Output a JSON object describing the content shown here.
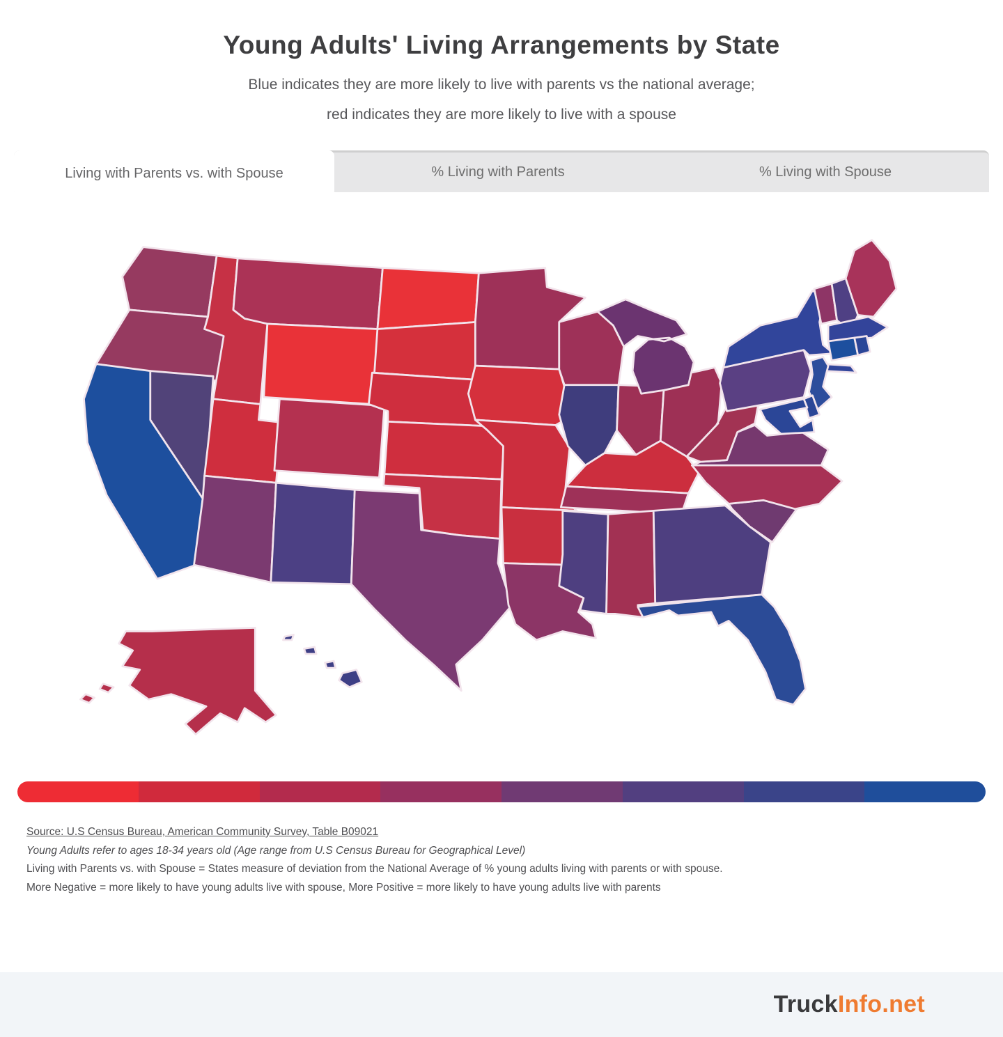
{
  "header": {
    "title": "Young Adults' Living Arrangements by State",
    "subtitle_line1": "Blue indicates they are more likely to live with parents vs the national average;",
    "subtitle_line2": "red indicates they are more likely to live with a spouse"
  },
  "tabs": [
    {
      "label": "Living with Parents vs. with Spouse",
      "active": true
    },
    {
      "label": "% Living with Parents",
      "active": false
    },
    {
      "label": "% Living with Spouse",
      "active": false
    }
  ],
  "notes": {
    "source": "Source: U.S Census Bureau, American Community Survey, Table B09021",
    "line2": "Young Adults refer to ages 18-34 years old (Age range from U.S Census Bureau for Geographical Level)",
    "line3": "Living with Parents vs. with Spouse = States measure of deviation from the National Average of % young adults living with parents or with spouse.",
    "line4": "More Negative = more likely to have young adults live with spouse, More Positive = more likely to have young adults live with parents"
  },
  "footer": {
    "brand_primary": "Truck",
    "brand_accent": "Info.net",
    "accent_color": "#ef7b31"
  },
  "chart_data": {
    "type": "choropleth",
    "title": "Young Adults' Living Arrangements by State",
    "scale": {
      "kind": "diverging",
      "red_end_meaning": "more likely to live with spouse (more negative deviation)",
      "blue_end_meaning": "more likely to live with parents (more positive deviation)",
      "legend_colors": [
        "#ee2c34",
        "#d02a3c",
        "#b32b4d",
        "#97305f",
        "#703a73",
        "#523f80",
        "#3a4489",
        "#1f4e9b"
      ],
      "bucket_note": "bucket 0 = reddest, bucket 7 = bluest, read from state fill colors"
    },
    "states": [
      {
        "abbr": "WA",
        "name": "Washington",
        "color": "#963a60",
        "bucket": 3
      },
      {
        "abbr": "OR",
        "name": "Oregon",
        "color": "#963a60",
        "bucket": 3
      },
      {
        "abbr": "CA",
        "name": "California",
        "color": "#1d4f9e",
        "bucket": 7
      },
      {
        "abbr": "NV",
        "name": "Nevada",
        "color": "#514379",
        "bucket": 5
      },
      {
        "abbr": "ID",
        "name": "Idaho",
        "color": "#c63145",
        "bucket": 2
      },
      {
        "abbr": "MT",
        "name": "Montana",
        "color": "#ab3356",
        "bucket": 2
      },
      {
        "abbr": "WY",
        "name": "Wyoming",
        "color": "#e93238",
        "bucket": 0
      },
      {
        "abbr": "UT",
        "name": "Utah",
        "color": "#cf2e3e",
        "bucket": 1
      },
      {
        "abbr": "CO",
        "name": "Colorado",
        "color": "#b43150",
        "bucket": 2
      },
      {
        "abbr": "AZ",
        "name": "Arizona",
        "color": "#7b3a70",
        "bucket": 4
      },
      {
        "abbr": "NM",
        "name": "New Mexico",
        "color": "#4c4084",
        "bucket": 5
      },
      {
        "abbr": "ND",
        "name": "North Dakota",
        "color": "#e93238",
        "bucket": 0
      },
      {
        "abbr": "SD",
        "name": "South Dakota",
        "color": "#d5303c",
        "bucket": 1
      },
      {
        "abbr": "NE",
        "name": "Nebraska",
        "color": "#cf2e3e",
        "bucket": 1
      },
      {
        "abbr": "KS",
        "name": "Kansas",
        "color": "#cf2e3e",
        "bucket": 1
      },
      {
        "abbr": "OK",
        "name": "Oklahoma",
        "color": "#c63145",
        "bucket": 2
      },
      {
        "abbr": "TX",
        "name": "Texas",
        "color": "#7b3a72",
        "bucket": 4
      },
      {
        "abbr": "MN",
        "name": "Minnesota",
        "color": "#9e3158",
        "bucket": 3
      },
      {
        "abbr": "IA",
        "name": "Iowa",
        "color": "#d5303c",
        "bucket": 1
      },
      {
        "abbr": "MO",
        "name": "Missouri",
        "color": "#cc2e3e",
        "bucket": 1
      },
      {
        "abbr": "AR",
        "name": "Arkansas",
        "color": "#c92f3f",
        "bucket": 1
      },
      {
        "abbr": "LA",
        "name": "Louisiana",
        "color": "#8c3566",
        "bucket": 4
      },
      {
        "abbr": "WI",
        "name": "Wisconsin",
        "color": "#9e3158",
        "bucket": 3
      },
      {
        "abbr": "IL",
        "name": "Illinois",
        "color": "#3f3d7d",
        "bucket": 6
      },
      {
        "abbr": "MI",
        "name": "Michigan",
        "color": "#6b3470",
        "bucket": 4
      },
      {
        "abbr": "IN",
        "name": "Indiana",
        "color": "#9e3055",
        "bucket": 3
      },
      {
        "abbr": "OH",
        "name": "Ohio",
        "color": "#9e3055",
        "bucket": 3
      },
      {
        "abbr": "KY",
        "name": "Kentucky",
        "color": "#cc2e3e",
        "bucket": 1
      },
      {
        "abbr": "TN",
        "name": "Tennessee",
        "color": "#9e3158",
        "bucket": 3
      },
      {
        "abbr": "MS",
        "name": "Mississippi",
        "color": "#4e3f80",
        "bucket": 5
      },
      {
        "abbr": "AL",
        "name": "Alabama",
        "color": "#a23153",
        "bucket": 3
      },
      {
        "abbr": "GA",
        "name": "Georgia",
        "color": "#4e3f80",
        "bucket": 5
      },
      {
        "abbr": "FL",
        "name": "Florida",
        "color": "#2b4b97",
        "bucket": 6
      },
      {
        "abbr": "SC",
        "name": "South Carolina",
        "color": "#6f3a70",
        "bucket": 4
      },
      {
        "abbr": "NC",
        "name": "North Carolina",
        "color": "#a83155",
        "bucket": 3
      },
      {
        "abbr": "VA",
        "name": "Virginia",
        "color": "#76386e",
        "bucket": 4
      },
      {
        "abbr": "WV",
        "name": "West Virginia",
        "color": "#a23353",
        "bucket": 3
      },
      {
        "abbr": "PA",
        "name": "Pennsylvania",
        "color": "#5a4083",
        "bucket": 5
      },
      {
        "abbr": "NY",
        "name": "New York",
        "color": "#31459b",
        "bucket": 6
      },
      {
        "abbr": "NJ",
        "name": "New Jersey",
        "color": "#2d4d9c",
        "bucket": 6
      },
      {
        "abbr": "DE",
        "name": "Delaware",
        "color": "#2b4697",
        "bucket": 6
      },
      {
        "abbr": "MD",
        "name": "Maryland",
        "color": "#2b4697",
        "bucket": 6
      },
      {
        "abbr": "VT",
        "name": "Vermont",
        "color": "#8e3566",
        "bucket": 4
      },
      {
        "abbr": "NH",
        "name": "New Hampshire",
        "color": "#4f4084",
        "bucket": 5
      },
      {
        "abbr": "ME",
        "name": "Maine",
        "color": "#a8335a",
        "bucket": 3
      },
      {
        "abbr": "MA",
        "name": "Massachusetts",
        "color": "#33449a",
        "bucket": 6
      },
      {
        "abbr": "CT",
        "name": "Connecticut",
        "color": "#1d4f9e",
        "bucket": 7
      },
      {
        "abbr": "RI",
        "name": "Rhode Island",
        "color": "#2b4697",
        "bucket": 6
      },
      {
        "abbr": "AK",
        "name": "Alaska",
        "color": "#b52f4b",
        "bucket": 2
      },
      {
        "abbr": "HI",
        "name": "Hawaii",
        "color": "#3e3f85",
        "bucket": 6
      }
    ]
  }
}
